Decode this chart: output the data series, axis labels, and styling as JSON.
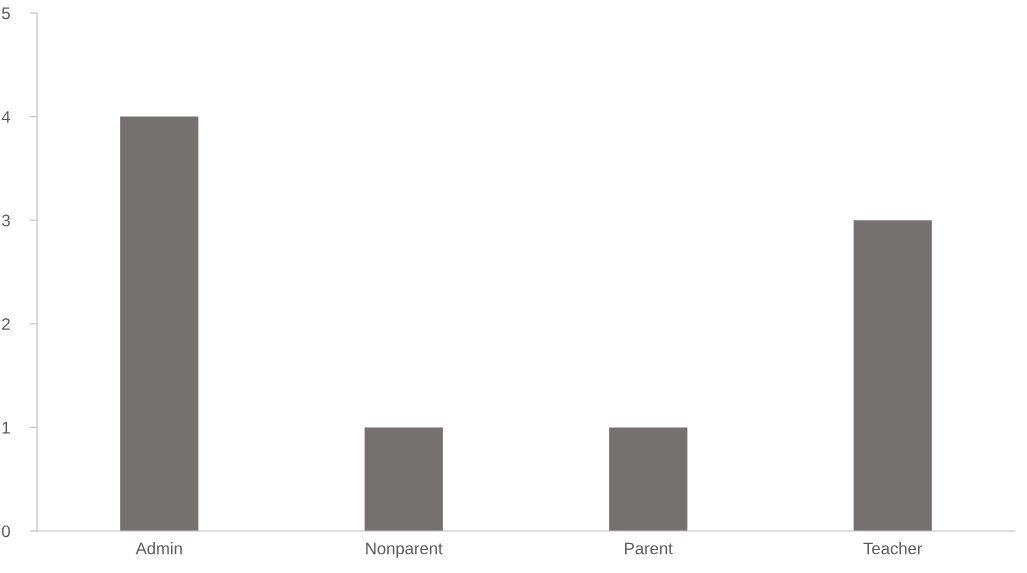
{
  "chart_data": {
    "type": "bar",
    "categories": [
      "Admin",
      "Nonparent",
      "Parent",
      "Teacher"
    ],
    "values": [
      4,
      1,
      1,
      3
    ],
    "color": "#767171",
    "ylim": [
      0,
      5
    ],
    "yticks": [
      0,
      1,
      2,
      3,
      4,
      5
    ],
    "grid": false
  }
}
